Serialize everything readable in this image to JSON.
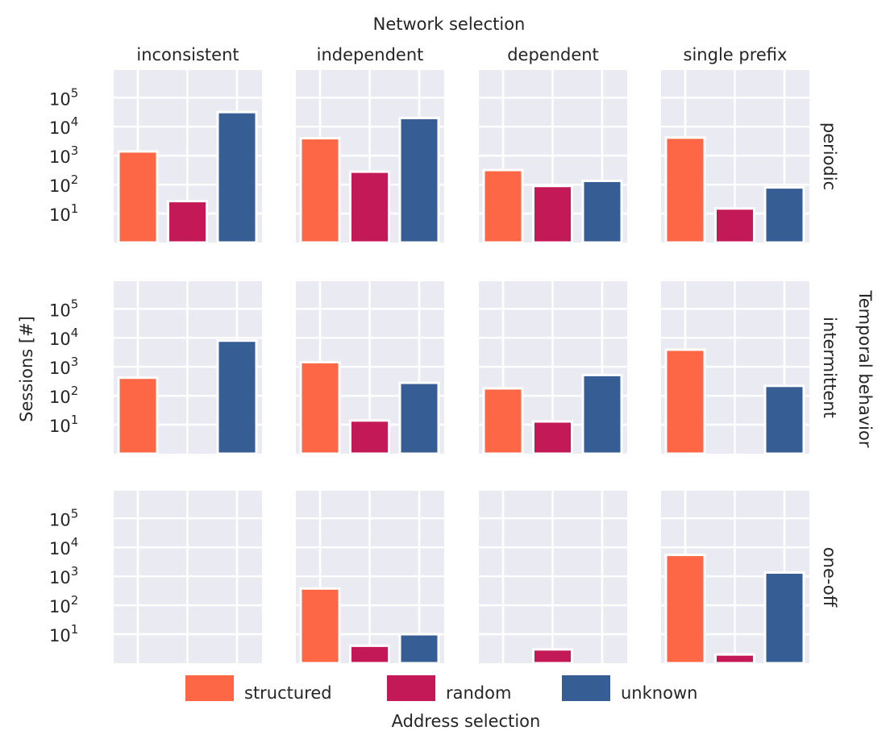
{
  "chart_data": {
    "type": "bar",
    "scale": "log",
    "title": "Network selection",
    "columns": [
      "inconsistent",
      "independent",
      "dependent",
      "single prefix"
    ],
    "rows": [
      "periodic",
      "intermittent",
      "one-off"
    ],
    "row_axis_title": "Temporal behavior",
    "ylabel": "Sessions [#]",
    "xlabel": "Address selection",
    "categories": [
      "structured",
      "random",
      "unknown"
    ],
    "colors": {
      "structured": "#fe6745",
      "random": "#c31a57",
      "unknown": "#365e95"
    },
    "ylim": [
      1,
      900000
    ],
    "yticks": [
      {
        "value": 10,
        "exp": "1"
      },
      {
        "value": 100,
        "exp": "2"
      },
      {
        "value": 1000,
        "exp": "3"
      },
      {
        "value": 10000,
        "exp": "4"
      },
      {
        "value": 100000,
        "exp": "5"
      }
    ],
    "grid": true,
    "legend_placement": "bottom",
    "panels": [
      {
        "row": "periodic",
        "column": "inconsistent",
        "values": {
          "structured": 1400,
          "random": 27,
          "unknown": 32000
        }
      },
      {
        "row": "periodic",
        "column": "independent",
        "values": {
          "structured": 4000,
          "random": 280,
          "unknown": 20000
        }
      },
      {
        "row": "periodic",
        "column": "dependent",
        "values": {
          "structured": 320,
          "random": 90,
          "unknown": 135
        }
      },
      {
        "row": "periodic",
        "column": "single prefix",
        "values": {
          "structured": 4200,
          "random": 15,
          "unknown": 80
        }
      },
      {
        "row": "intermittent",
        "column": "inconsistent",
        "values": {
          "structured": 420,
          "random": null,
          "unknown": 8000
        }
      },
      {
        "row": "intermittent",
        "column": "independent",
        "values": {
          "structured": 1450,
          "random": 14,
          "unknown": 280
        }
      },
      {
        "row": "intermittent",
        "column": "dependent",
        "values": {
          "structured": 180,
          "random": 13,
          "unknown": 520
        }
      },
      {
        "row": "intermittent",
        "column": "single prefix",
        "values": {
          "structured": 3900,
          "random": null,
          "unknown": 220
        }
      },
      {
        "row": "one-off",
        "column": "inconsistent",
        "values": {
          "structured": null,
          "random": null,
          "unknown": null
        }
      },
      {
        "row": "one-off",
        "column": "independent",
        "values": {
          "structured": 380,
          "random": 4,
          "unknown": 10
        }
      },
      {
        "row": "one-off",
        "column": "dependent",
        "values": {
          "structured": null,
          "random": 3,
          "unknown": null
        }
      },
      {
        "row": "one-off",
        "column": "single prefix",
        "values": {
          "structured": 5500,
          "random": 2,
          "unknown": 1350
        }
      }
    ]
  }
}
